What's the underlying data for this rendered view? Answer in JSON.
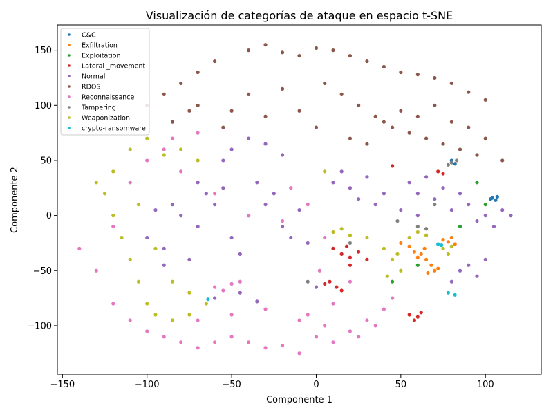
{
  "chart_data": {
    "type": "scatter",
    "title": "Visualización de categorías de ataque en espacio t-SNE",
    "xlabel": "Componente 1",
    "ylabel": "Componente 2",
    "xlim": [
      -153,
      133
    ],
    "ylim": [
      -144,
      173
    ],
    "xticks": [
      -150,
      -100,
      -50,
      0,
      50,
      100
    ],
    "yticks": [
      -100,
      -50,
      0,
      50,
      100,
      150
    ],
    "grid": false,
    "legend_position": "top-left",
    "series": [
      {
        "name": "C&C",
        "color": "#1f77b4",
        "values": [
          [
            104,
            16
          ],
          [
            106,
            14
          ],
          [
            107,
            17
          ],
          [
            103,
            15
          ],
          [
            80,
            50
          ],
          [
            82,
            47
          ]
        ]
      },
      {
        "name": "Exfiltration",
        "color": "#ff7f0e",
        "values": [
          [
            50,
            -25
          ],
          [
            55,
            -28
          ],
          [
            62,
            -35
          ],
          [
            65,
            -40
          ],
          [
            68,
            -45
          ],
          [
            70,
            -50
          ],
          [
            66,
            -52
          ],
          [
            60,
            -38
          ],
          [
            75,
            -22
          ],
          [
            78,
            -24
          ],
          [
            82,
            -26
          ],
          [
            80,
            -20
          ],
          [
            72,
            -48
          ],
          [
            64,
            -30
          ],
          [
            58,
            -33
          ]
        ]
      },
      {
        "name": "Exploitation",
        "color": "#2ca02c",
        "values": [
          [
            60,
            -45
          ],
          [
            95,
            30
          ],
          [
            100,
            10
          ],
          [
            45,
            -60
          ],
          [
            85,
            -10
          ]
        ]
      },
      {
        "name": "Lateral _movement",
        "color": "#d62728",
        "values": [
          [
            10,
            -30
          ],
          [
            15,
            -35
          ],
          [
            20,
            -38
          ],
          [
            25,
            -33
          ],
          [
            30,
            -40
          ],
          [
            18,
            -28
          ],
          [
            8,
            -60
          ],
          [
            12,
            -65
          ],
          [
            15,
            -68
          ],
          [
            5,
            -62
          ],
          [
            55,
            -90
          ],
          [
            60,
            -92
          ],
          [
            62,
            -88
          ],
          [
            58,
            -95
          ],
          [
            72,
            40
          ],
          [
            75,
            38
          ],
          [
            45,
            45
          ],
          [
            20,
            -45
          ]
        ]
      },
      {
        "name": "Normal",
        "color": "#9467bd",
        "values": [
          [
            -80,
            0
          ],
          [
            -70,
            -10
          ],
          [
            -60,
            10
          ],
          [
            -50,
            -20
          ],
          [
            -40,
            0
          ],
          [
            -30,
            10
          ],
          [
            -20,
            -10
          ],
          [
            -90,
            -30
          ],
          [
            -75,
            -40
          ],
          [
            -65,
            20
          ],
          [
            -55,
            25
          ],
          [
            -35,
            30
          ],
          [
            -25,
            20
          ],
          [
            -15,
            -20
          ],
          [
            -85,
            10
          ],
          [
            -45,
            -35
          ],
          [
            -10,
            5
          ],
          [
            -5,
            -25
          ],
          [
            -50,
            60
          ],
          [
            -55,
            50
          ],
          [
            -30,
            65
          ],
          [
            -20,
            55
          ],
          [
            -40,
            70
          ],
          [
            10,
            30
          ],
          [
            20,
            25
          ],
          [
            30,
            35
          ],
          [
            25,
            15
          ],
          [
            15,
            40
          ],
          [
            40,
            20
          ],
          [
            35,
            10
          ],
          [
            50,
            5
          ],
          [
            55,
            30
          ],
          [
            60,
            20
          ],
          [
            65,
            35
          ],
          [
            70,
            15
          ],
          [
            75,
            25
          ],
          [
            80,
            5
          ],
          [
            60,
            0
          ],
          [
            85,
            20
          ],
          [
            90,
            10
          ],
          [
            95,
            -5
          ],
          [
            100,
            0
          ],
          [
            105,
            -10
          ],
          [
            110,
            5
          ],
          [
            115,
            0
          ],
          [
            85,
            -50
          ],
          [
            90,
            -45
          ],
          [
            95,
            -55
          ],
          [
            100,
            -40
          ],
          [
            80,
            -60
          ],
          [
            -60,
            -75
          ],
          [
            -45,
            -70
          ],
          [
            -35,
            -78
          ],
          [
            0,
            -65
          ],
          [
            -90,
            -45
          ],
          [
            -100,
            -20
          ],
          [
            -95,
            5
          ],
          [
            -70,
            30
          ]
        ]
      },
      {
        "name": "RDOS",
        "color": "#8c564b",
        "values": [
          [
            -40,
            150
          ],
          [
            -30,
            155
          ],
          [
            -20,
            148
          ],
          [
            -10,
            145
          ],
          [
            0,
            152
          ],
          [
            10,
            150
          ],
          [
            20,
            145
          ],
          [
            30,
            140
          ],
          [
            40,
            135
          ],
          [
            50,
            130
          ],
          [
            60,
            128
          ],
          [
            70,
            125
          ],
          [
            80,
            120
          ],
          [
            90,
            112
          ],
          [
            100,
            105
          ],
          [
            -60,
            140
          ],
          [
            -70,
            130
          ],
          [
            -80,
            120
          ],
          [
            -90,
            110
          ],
          [
            -100,
            100
          ],
          [
            -70,
            100
          ],
          [
            -50,
            95
          ],
          [
            -30,
            90
          ],
          [
            -10,
            95
          ],
          [
            5,
            120
          ],
          [
            15,
            110
          ],
          [
            25,
            100
          ],
          [
            35,
            90
          ],
          [
            45,
            80
          ],
          [
            55,
            75
          ],
          [
            65,
            70
          ],
          [
            75,
            65
          ],
          [
            85,
            60
          ],
          [
            95,
            55
          ],
          [
            110,
            50
          ],
          [
            20,
            70
          ],
          [
            30,
            65
          ],
          [
            40,
            85
          ],
          [
            50,
            95
          ],
          [
            60,
            90
          ],
          [
            70,
            100
          ],
          [
            80,
            85
          ],
          [
            90,
            80
          ],
          [
            100,
            70
          ],
          [
            -55,
            80
          ],
          [
            -40,
            110
          ],
          [
            -20,
            115
          ],
          [
            0,
            80
          ],
          [
            -85,
            85
          ],
          [
            -75,
            95
          ]
        ]
      },
      {
        "name": "Reconnaissance",
        "color": "#e377c2",
        "values": [
          [
            -140,
            -30
          ],
          [
            -130,
            -50
          ],
          [
            -120,
            -80
          ],
          [
            -110,
            -95
          ],
          [
            -100,
            -105
          ],
          [
            -90,
            -110
          ],
          [
            -80,
            -115
          ],
          [
            -70,
            -120
          ],
          [
            -60,
            -115
          ],
          [
            -50,
            -110
          ],
          [
            -40,
            -115
          ],
          [
            -30,
            -120
          ],
          [
            -20,
            -118
          ],
          [
            -10,
            -125
          ],
          [
            0,
            -110
          ],
          [
            10,
            -115
          ],
          [
            20,
            -105
          ],
          [
            30,
            -95
          ],
          [
            40,
            -85
          ],
          [
            -60,
            -65
          ],
          [
            -55,
            -68
          ],
          [
            -50,
            -62
          ],
          [
            -45,
            -60
          ],
          [
            -10,
            -95
          ],
          [
            -5,
            -90
          ],
          [
            5,
            -100
          ],
          [
            -90,
            60
          ],
          [
            -85,
            70
          ],
          [
            -80,
            40
          ],
          [
            -70,
            75
          ],
          [
            -60,
            20
          ],
          [
            -40,
            0
          ],
          [
            -20,
            -5
          ],
          [
            -15,
            25
          ],
          [
            -5,
            10
          ],
          [
            5,
            -20
          ],
          [
            2,
            -50
          ],
          [
            10,
            -80
          ],
          [
            20,
            -60
          ],
          [
            -30,
            -85
          ],
          [
            -70,
            -95
          ],
          [
            -50,
            -90
          ],
          [
            -110,
            30
          ],
          [
            -100,
            50
          ],
          [
            -120,
            -10
          ],
          [
            25,
            -110
          ],
          [
            35,
            -100
          ],
          [
            45,
            -75
          ]
        ]
      },
      {
        "name": "Tampering",
        "color": "#7f7f7f",
        "values": [
          [
            80,
            48
          ],
          [
            83,
            50
          ],
          [
            78,
            46
          ],
          [
            48,
            -5
          ],
          [
            60,
            -10
          ],
          [
            65,
            -12
          ],
          [
            20,
            -25
          ],
          [
            -5,
            -60
          ],
          [
            70,
            10
          ]
        ]
      },
      {
        "name": "Weaponization",
        "color": "#bcbd22",
        "values": [
          [
            -130,
            30
          ],
          [
            -125,
            20
          ],
          [
            -120,
            0
          ],
          [
            -115,
            -20
          ],
          [
            -110,
            -40
          ],
          [
            -105,
            -60
          ],
          [
            -100,
            -80
          ],
          [
            -95,
            -90
          ],
          [
            -85,
            -95
          ],
          [
            -75,
            -90
          ],
          [
            -65,
            -80
          ],
          [
            -110,
            60
          ],
          [
            -100,
            70
          ],
          [
            -90,
            55
          ],
          [
            -80,
            60
          ],
          [
            -70,
            50
          ],
          [
            -120,
            40
          ],
          [
            -105,
            10
          ],
          [
            -95,
            -30
          ],
          [
            -85,
            -60
          ],
          [
            -75,
            -70
          ],
          [
            40,
            -30
          ],
          [
            45,
            -40
          ],
          [
            50,
            -50
          ],
          [
            42,
            -55
          ],
          [
            48,
            -35
          ],
          [
            55,
            -20
          ],
          [
            60,
            -15
          ],
          [
            65,
            -18
          ],
          [
            10,
            -15
          ],
          [
            15,
            -12
          ],
          [
            20,
            -18
          ],
          [
            75,
            -30
          ],
          [
            78,
            -35
          ],
          [
            80,
            -28
          ],
          [
            30,
            -20
          ],
          [
            5,
            40
          ]
        ]
      },
      {
        "name": "crypto-ransomware",
        "color": "#17becf",
        "values": [
          [
            72,
            -26
          ],
          [
            74,
            -27
          ],
          [
            78,
            -70
          ],
          [
            -64,
            -76
          ],
          [
            82,
            -72
          ]
        ]
      }
    ]
  }
}
